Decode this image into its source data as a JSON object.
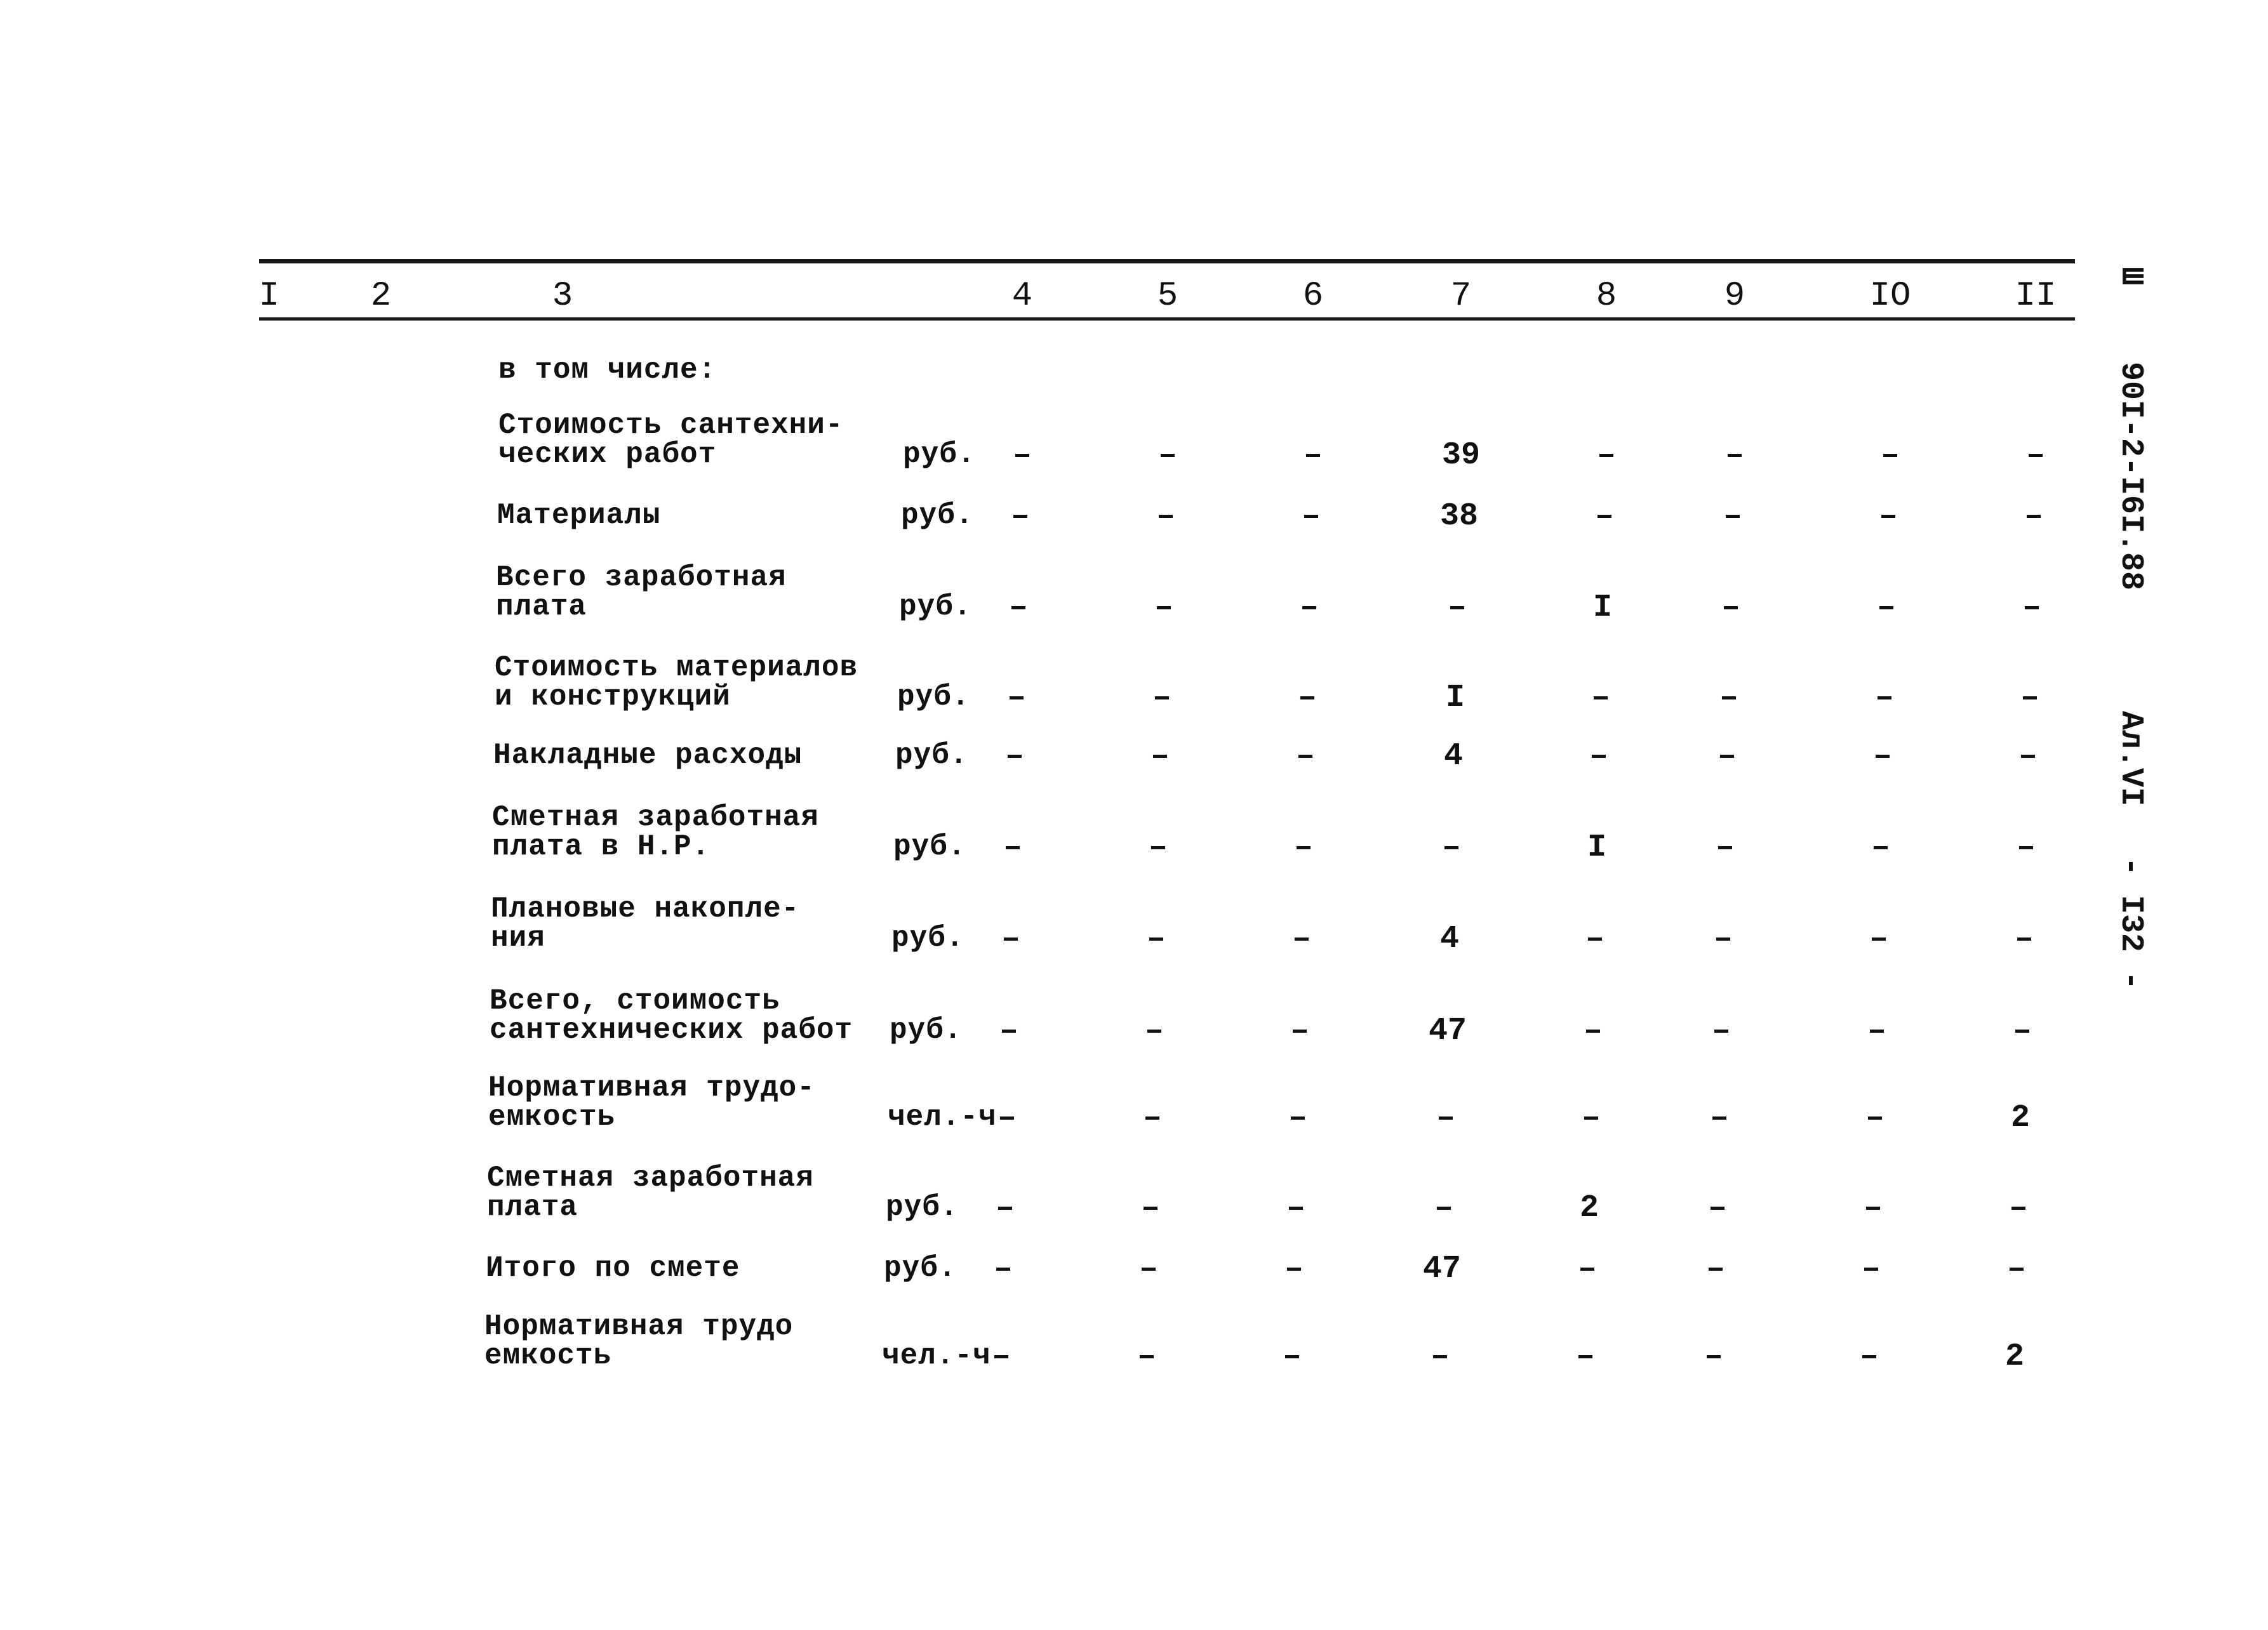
{
  "columns": [
    "I",
    "2",
    "3",
    "4",
    "5",
    "6",
    "7",
    "8",
    "9",
    "IO",
    "II"
  ],
  "intro": "в том числе:",
  "rows": [
    {
      "label": [
        "Стоимость сантехни-",
        "ческих работ"
      ],
      "unit": "руб.",
      "values": [
        "–",
        "–",
        "–",
        "39",
        "–",
        "–",
        "–",
        "–"
      ]
    },
    {
      "label": [
        "Материалы"
      ],
      "unit": "руб.",
      "values": [
        "–",
        "–",
        "–",
        "38",
        "–",
        "–",
        "–",
        "–"
      ]
    },
    {
      "label": [
        "Всего заработная",
        "плата"
      ],
      "unit": "руб.",
      "values": [
        "–",
        "–",
        "–",
        "–",
        "I",
        "–",
        "–",
        "–"
      ]
    },
    {
      "label": [
        "Стоимость материалов",
        "и конструкций"
      ],
      "unit": "руб.",
      "values": [
        "–",
        "–",
        "–",
        "I",
        "–",
        "–",
        "–",
        "–"
      ]
    },
    {
      "label": [
        "Накладные расходы"
      ],
      "unit": "руб.",
      "values": [
        "–",
        "–",
        "–",
        "4",
        "–",
        "–",
        "–",
        "–"
      ]
    },
    {
      "label": [
        "Сметная заработная",
        "плата в Н.Р."
      ],
      "unit": "руб.",
      "values": [
        "–",
        "–",
        "–",
        "–",
        "I",
        "–",
        "–",
        "–"
      ]
    },
    {
      "label": [
        "Плановые накопле-",
        "ния"
      ],
      "unit": "руб.",
      "values": [
        "–",
        "–",
        "–",
        "4",
        "–",
        "–",
        "–",
        "–"
      ]
    },
    {
      "label": [
        "Всего, стоимость",
        "сантехнических работ"
      ],
      "unit": "руб.",
      "values": [
        "–",
        "–",
        "–",
        "47",
        "–",
        "–",
        "–",
        "–"
      ]
    },
    {
      "label": [
        "Нормативная трудо-",
        "емкость"
      ],
      "unit": "чел.-ч",
      "values": [
        "–",
        "–",
        "–",
        "–",
        "–",
        "–",
        "–",
        "2"
      ]
    },
    {
      "label": [
        "Сметная заработная",
        "плата"
      ],
      "unit": "руб.",
      "values": [
        "–",
        "–",
        "–",
        "–",
        "2",
        "–",
        "–",
        "–"
      ]
    },
    {
      "label": [
        "Итого по смете"
      ],
      "unit": "руб.",
      "values": [
        "–",
        "–",
        "–",
        "47",
        "–",
        "–",
        "–",
        "–"
      ]
    },
    {
      "label": [
        "Нормативная трудо",
        "емкость"
      ],
      "unit": "чел.-ч",
      "values": [
        "–",
        "–",
        "–",
        "–",
        "–",
        "–",
        "–",
        "2"
      ]
    }
  ],
  "side_stamp": {
    "series": "Ш",
    "code": "90I-2-I6I.88",
    "album": "Ал.VI",
    "page": "- I32 -"
  }
}
